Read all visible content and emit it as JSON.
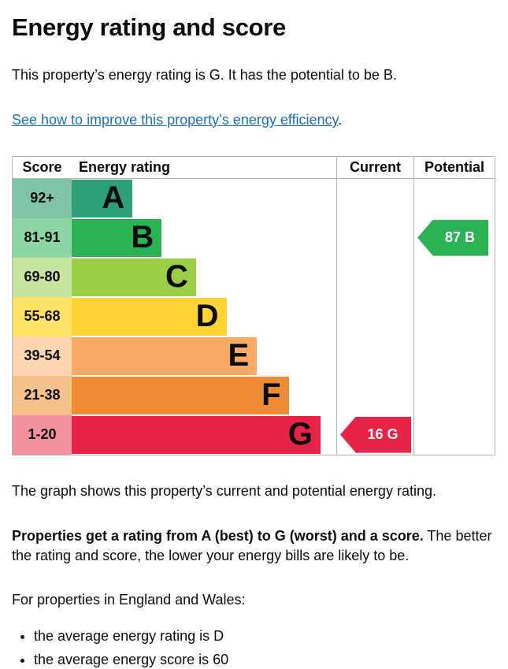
{
  "page": {
    "title": "Energy rating and score",
    "intro": "This property’s energy rating is G. It has the potential to be B.",
    "improve_link": "See how to improve this property’s energy efficiency",
    "improve_link_suffix": ".",
    "caption": "The graph shows this property’s current and potential energy rating.",
    "explain_bold": "Properties get a rating from A (best) to G (worst) and a score.",
    "explain_rest": " The better the rating and score, the lower your energy bills are likely to be.",
    "region_heading": "For properties in England and Wales:",
    "bullets": [
      "the average energy rating is D",
      "the average energy score is 60"
    ]
  },
  "chart_data": {
    "type": "bar",
    "title": "Energy rating and score",
    "columns": {
      "score": "Score",
      "rating": "Energy rating",
      "current": "Current",
      "potential": "Potential"
    },
    "bands": [
      {
        "score": "92+",
        "letter": "A",
        "color": "#2da078",
        "tint": "#7fc4a7",
        "width_pct": 23
      },
      {
        "score": "81-91",
        "letter": "B",
        "color": "#2ab355",
        "tint": "#8cd6a6",
        "width_pct": 34
      },
      {
        "score": "69-80",
        "letter": "C",
        "color": "#9ace46",
        "tint": "#c5e5a0",
        "width_pct": 47
      },
      {
        "score": "55-68",
        "letter": "D",
        "color": "#fed334",
        "tint": "#ffe266",
        "width_pct": 58.5
      },
      {
        "score": "39-54",
        "letter": "E",
        "color": "#fbaa65",
        "tint": "#fdd5ae",
        "width_pct": 70
      },
      {
        "score": "21-38",
        "letter": "F",
        "color": "#ee8b33",
        "tint": "#f6c08b",
        "width_pct": 82
      },
      {
        "score": "1-20",
        "letter": "G",
        "color": "#e8234a",
        "tint": "#f391a1",
        "width_pct": 94
      }
    ],
    "current": {
      "label": "16 G",
      "value": 16,
      "letter": "G",
      "band_index": 6,
      "color": "#e8234a"
    },
    "potential": {
      "label": "87 B",
      "value": 87,
      "letter": "B",
      "band_index": 1,
      "color": "#2ab355"
    }
  },
  "theme": {
    "text_color": "#0b0c0c",
    "link_color": "#1d70b8",
    "border_color": "#b1b4b6"
  }
}
